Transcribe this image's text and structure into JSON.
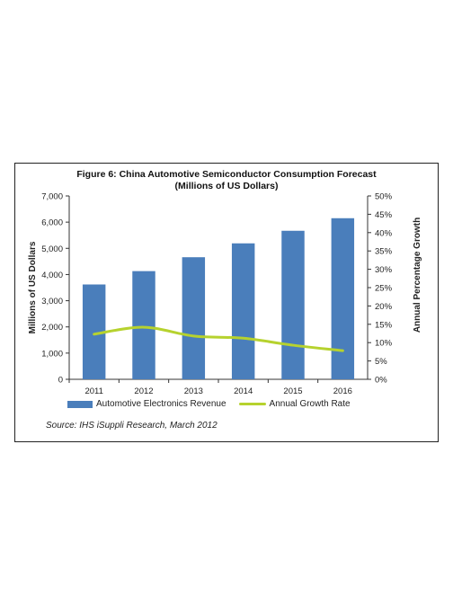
{
  "chart_data": {
    "type": "bar",
    "title": "Figure 6: China Automotive Semiconductor Consumption Forecast",
    "subtitle": "(Millions of US Dollars)",
    "categories": [
      "2011",
      "2012",
      "2013",
      "2014",
      "2015",
      "2016"
    ],
    "series": [
      {
        "name": "Automotive Electronics Revenue",
        "type": "bar",
        "axis": "left",
        "color": "#4a7ebb",
        "values": [
          3620,
          4130,
          4660,
          5190,
          5670,
          6150
        ]
      },
      {
        "name": "Annual Growth Rate",
        "type": "line",
        "axis": "right",
        "color": "#b6d22e",
        "values": [
          12.3,
          14.2,
          11.8,
          11.2,
          9.3,
          7.8
        ]
      }
    ],
    "ylabel": "Millions of US Dollars",
    "y2label": "Annual Percentage Growth",
    "ylim": [
      0,
      7000
    ],
    "y2lim": [
      0,
      50
    ],
    "yticks": [
      "0",
      "1,000",
      "2,000",
      "3,000",
      "4,000",
      "5,000",
      "6,000",
      "7,000"
    ],
    "y2ticks": [
      "0%",
      "5%",
      "10%",
      "15%",
      "20%",
      "25%",
      "30%",
      "35%",
      "40%",
      "45%",
      "50%"
    ],
    "grid": false,
    "legend_position": "bottom",
    "source": "Source: IHS iSuppli Research, March 2012"
  }
}
